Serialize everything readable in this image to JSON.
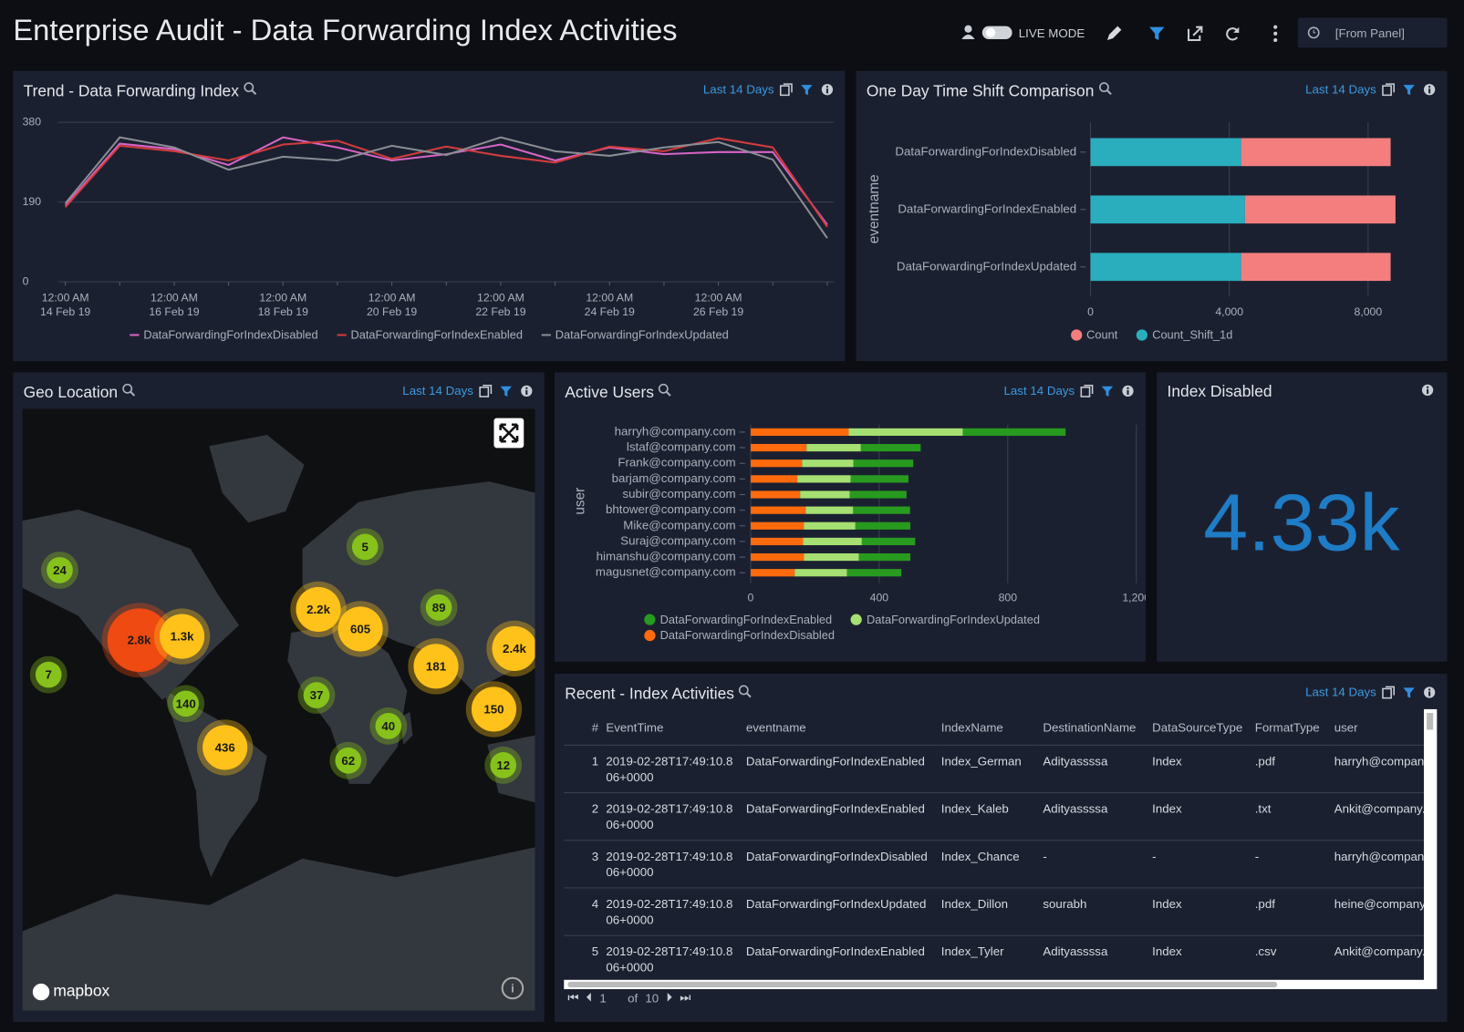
{
  "header": {
    "title": "Enterprise Audit - Data Forwarding Index Activities",
    "live_mode": "LIVE MODE",
    "time_range": "[From Panel]"
  },
  "chart_data": [
    {
      "type": "line",
      "title": "Trend - Data Forwarding Index",
      "time_range": "Last 14 Days",
      "categories": [
        "12:00 AM\n14 Feb 19",
        null,
        "12:00 AM\n16 Feb 19",
        null,
        "12:00 AM\n18 Feb 19",
        null,
        "12:00 AM\n20 Feb 19",
        null,
        "12:00 AM\n22 Feb 19",
        null,
        "12:00 AM\n24 Feb 19",
        null,
        "12:00 AM\n26 Feb 19",
        null,
        null
      ],
      "series": [
        {
          "name": "DataForwardingForIndexDisabled",
          "color": "#d665c6",
          "values": [
            182,
            329,
            316,
            278,
            344,
            320,
            289,
            304,
            327,
            289,
            320,
            304,
            309,
            309,
            136
          ]
        },
        {
          "name": "DataForwardingForIndexEnabled",
          "color": "#d23c3c",
          "values": [
            178,
            324,
            311,
            289,
            327,
            336,
            293,
            322,
            300,
            284,
            322,
            311,
            342,
            320,
            131
          ]
        },
        {
          "name": "DataForwardingForIndexUpdated",
          "color": "#8a8d93",
          "values": [
            187,
            344,
            320,
            267,
            298,
            289,
            324,
            302,
            344,
            311,
            300,
            320,
            333,
            291,
            104
          ]
        }
      ],
      "ylim": [
        0,
        380
      ],
      "yticks": [
        0,
        190,
        380
      ],
      "grid": true,
      "legend": "bottom"
    },
    {
      "type": "stacked-barh",
      "title": "One Day Time Shift Comparison",
      "time_range": "Last 14 Days",
      "categories": [
        "DataForwardingForIndexDisabled",
        "DataForwardingForIndexEnabled",
        "DataForwardingForIndexUpdated"
      ],
      "series": [
        {
          "name": "Count",
          "color": "#f47e7e",
          "values": [
            4310,
            4340,
            4310
          ]
        },
        {
          "name": "Count_Shift_1d",
          "color": "#2aaebe",
          "values": [
            4340,
            4450,
            4340
          ]
        }
      ],
      "xlim": [
        0,
        8800
      ],
      "xticks": [
        0,
        {
          "value": 4000,
          "label": "4,000"
        },
        {
          "value": 8000,
          "label": "8,000"
        }
      ],
      "y_label": "eventname",
      "grid": true,
      "legend": "bottom"
    },
    {
      "type": "stacked-barh",
      "title": "Active Users",
      "time_range": "Last 14 Days",
      "categories": [
        "harryh@company.com",
        "lstaf@company.com",
        "Frank@company.com",
        "barjam@company.com",
        "subir@company.com",
        "bhtower@company.com",
        "Mike@company.com",
        "Suraj@company.com",
        "himanshu@company.com",
        "magusnet@company.com"
      ],
      "series": [
        {
          "name": "DataForwardingForIndexEnabled",
          "color": "#279a1f",
          "values": [
            320,
            186,
            186,
            180,
            177,
            177,
            171,
            166,
            160,
            169
          ]
        },
        {
          "name": "DataForwardingForIndexUpdated",
          "color": "#a6df72",
          "values": [
            355,
            169,
            160,
            166,
            154,
            148,
            160,
            183,
            171,
            163
          ]
        },
        {
          "name": "DataForwardingForIndexDisabled",
          "color": "#ff6a0d",
          "values": [
            305,
            174,
            160,
            145,
            154,
            171,
            166,
            163,
            166,
            137
          ]
        }
      ],
      "xlim": [
        0,
        1200
      ],
      "xticks": [
        0,
        400,
        800,
        {
          "value": 1200,
          "label": "1,200"
        }
      ],
      "y_label": "user",
      "grid": true,
      "legend": "bottom"
    }
  ],
  "geo": {
    "title": "Geo Location",
    "time_range": "Last 14 Days",
    "attribution": "mapbox",
    "clusters": [
      {
        "value": 24
      },
      {
        "value": 2800,
        "label": "2.8k"
      },
      {
        "value": 1300,
        "label": "1.3k"
      },
      {
        "value": 7
      },
      {
        "value": 140
      },
      {
        "value": 436
      },
      {
        "value": 5
      },
      {
        "value": 2200,
        "label": "2.2k"
      },
      {
        "value": 605
      },
      {
        "value": 89
      },
      {
        "value": 181
      },
      {
        "value": 37
      },
      {
        "value": 40
      },
      {
        "value": 62
      },
      {
        "value": 2400,
        "label": "2.4k"
      },
      {
        "value": 150
      },
      {
        "value": 12
      }
    ]
  },
  "index_disabled": {
    "title": "Index Disabled",
    "value": 4330,
    "value_label": "4.33k"
  },
  "table": {
    "title": "Recent - Index Activities",
    "time_range": "Last 14 Days",
    "columns": [
      "#",
      "EventTime",
      "eventname",
      "IndexName",
      "DestinationName",
      "DataSourceType",
      "FormatType",
      "user"
    ],
    "rows": [
      [
        1,
        "2019-02-28T17:49:10.806+0000",
        "DataForwardingForIndexEnabled",
        "Index_German",
        "Adityassssa",
        "Index",
        ".pdf",
        "harryh@company.com"
      ],
      [
        2,
        "2019-02-28T17:49:10.806+0000",
        "DataForwardingForIndexEnabled",
        "Index_Kaleb",
        "Adityassssa",
        "Index",
        ".txt",
        "Ankit@company.com"
      ],
      [
        3,
        "2019-02-28T17:49:10.806+0000",
        "DataForwardingForIndexDisabled",
        "Index_Chance",
        "-",
        "-",
        "-",
        "harryh@company.com"
      ],
      [
        4,
        "2019-02-28T17:49:10.806+0000",
        "DataForwardingForIndexUpdated",
        "Index_Dillon",
        "sourabh",
        "Index",
        ".pdf",
        "heine@company.com"
      ],
      [
        5,
        "2019-02-28T17:49:10.806+0000",
        "DataForwardingForIndexEnabled",
        "Index_Tyler",
        "Adityassssa",
        "Index",
        ".csv",
        "Ankit@company.com"
      ]
    ],
    "pagination": {
      "page": 1,
      "of": "of",
      "pages": 10
    }
  }
}
